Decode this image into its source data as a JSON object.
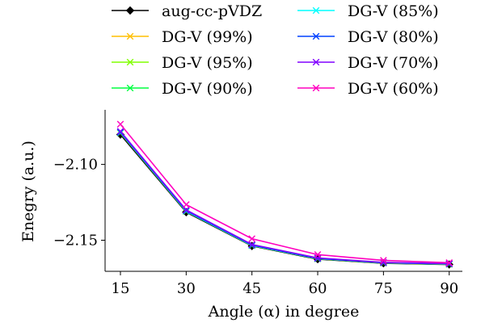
{
  "chart_data": {
    "type": "line",
    "xlabel": "Angle (α) in degree",
    "ylabel": "Enegry (a.u.)",
    "x": [
      15,
      30,
      45,
      60,
      75,
      90
    ],
    "xticks": [
      "15",
      "30",
      "45",
      "60",
      "75",
      "90"
    ],
    "yticks": [
      {
        "value": -2.1,
        "label": "−2.10"
      },
      {
        "value": -2.15,
        "label": "−2.15"
      }
    ],
    "xlim": [
      11.5,
      93
    ],
    "ylim": [
      -2.1705,
      -2.064
    ],
    "grid": false,
    "legend_position": "top",
    "series": [
      {
        "name": "aug-cc-pVDZ",
        "color": "#000000",
        "marker": "diamond",
        "values": [
          -2.0803,
          -2.1315,
          -2.1538,
          -2.1625,
          -2.1652,
          -2.166
        ]
      },
      {
        "name": "DG-V (99%)",
        "color": "#ffbf00",
        "marker": "x",
        "values": [
          -2.0793,
          -2.131,
          -2.1535,
          -2.1622,
          -2.165,
          -2.1658
        ]
      },
      {
        "name": "DG-V (95%)",
        "color": "#80ff00",
        "marker": "x",
        "values": [
          -2.0792,
          -2.1309,
          -2.1535,
          -2.1622,
          -2.165,
          -2.1658
        ]
      },
      {
        "name": "DG-V (90%)",
        "color": "#00ff40",
        "marker": "x",
        "values": [
          -2.0791,
          -2.1309,
          -2.1534,
          -2.1621,
          -2.1649,
          -2.1657
        ]
      },
      {
        "name": "DG-V (85%)",
        "color": "#00ffff",
        "marker": "x",
        "values": [
          -2.079,
          -2.1308,
          -2.1534,
          -2.1621,
          -2.1649,
          -2.1657
        ]
      },
      {
        "name": "DG-V (80%)",
        "color": "#0040ff",
        "marker": "x",
        "values": [
          -2.0788,
          -2.1305,
          -2.1532,
          -2.162,
          -2.1648,
          -2.1656
        ]
      },
      {
        "name": "DG-V (70%)",
        "color": "#8000ff",
        "marker": "x",
        "values": [
          -2.0782,
          -2.13,
          -2.1528,
          -2.1617,
          -2.1646,
          -2.1654
        ]
      },
      {
        "name": "DG-V (60%)",
        "color": "#ff00bf",
        "marker": "x",
        "values": [
          -2.0735,
          -2.1265,
          -2.149,
          -2.1595,
          -2.1633,
          -2.1648
        ]
      }
    ]
  }
}
